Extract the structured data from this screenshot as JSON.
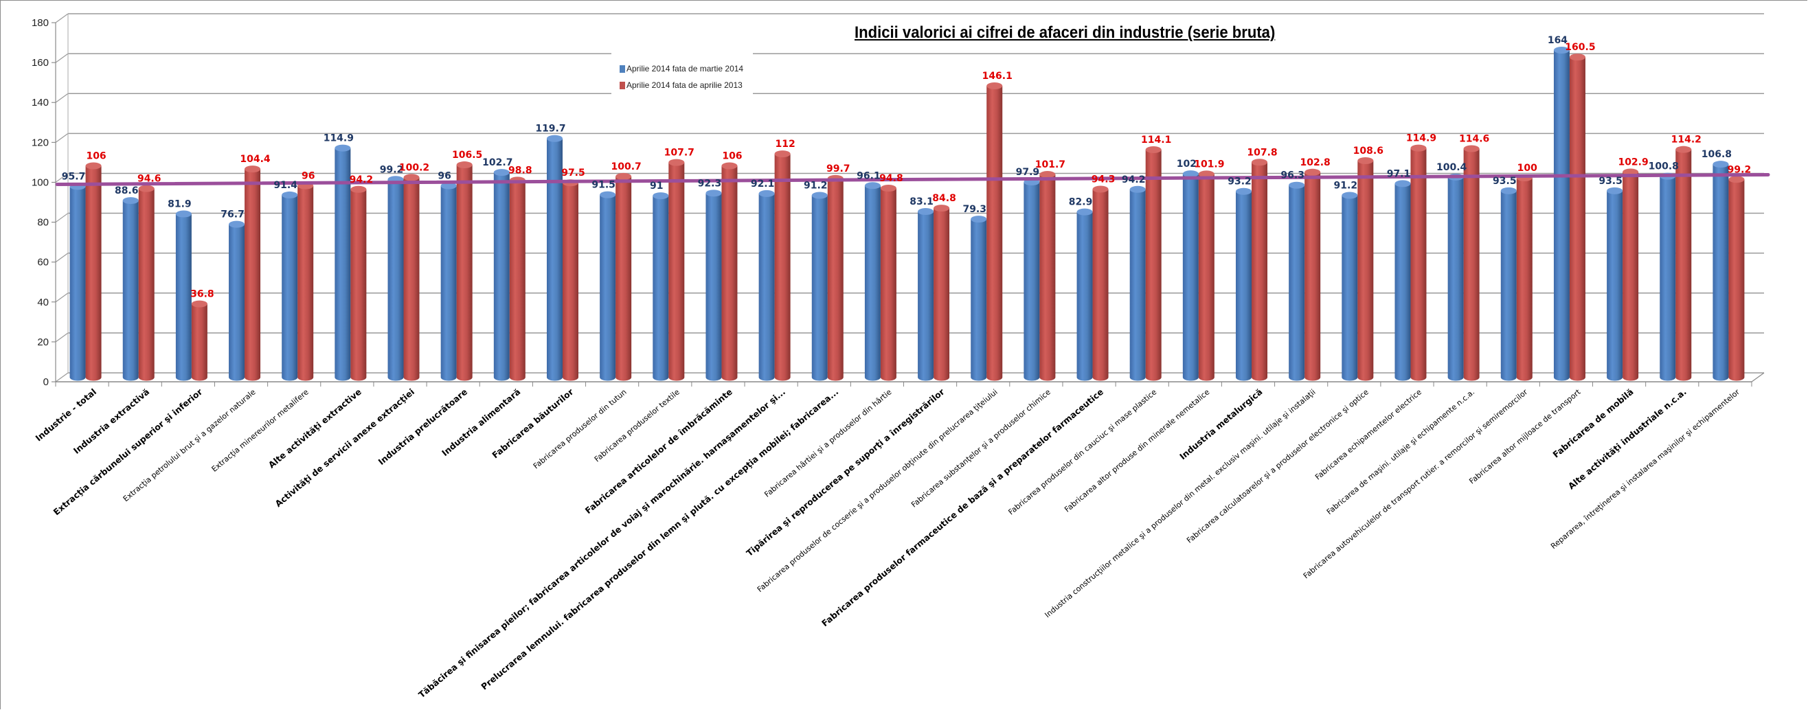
{
  "chart_data": {
    "type": "bar",
    "title": "Indicii valorici ai cifrei de afaceri din industrie  (serie bruta)",
    "xlabel": "",
    "ylabel": "",
    "ylim": [
      0,
      180
    ],
    "yticks": [
      0,
      20,
      40,
      60,
      80,
      100,
      120,
      140,
      160,
      180
    ],
    "grid": true,
    "legend_position": "top-center",
    "reference_line": {
      "value": 100,
      "color": "#9b4f9b"
    },
    "colors": {
      "series_1": "#4f81bd",
      "series_2": "#c0504d",
      "label_1": "#1f3864",
      "label_2": "#e00000"
    },
    "categories": [
      "Industrie - total",
      "Industria extractivă",
      "Extracţia cărbunelui superior şi inferior",
      "Extracţia petrolului brut şi a gazelor naturale",
      "Extracţia minereurilor metalifere",
      "Alte activităţi extractive",
      "Activităţi de servicii anexe extracţiei",
      "Industria prelucrătoare",
      "Industria alimentară",
      "Fabricarea băuturilor",
      "Fabricarea produselor din tutun",
      "Fabricarea produselor textile",
      "Fabricarea articolelor de îmbrăcăminte",
      "Tăbăcirea şi finisarea pieilor; fabricarea articolelor de voiaj şi marochinărie. harnaşamentelor şi...",
      "Prelucrarea lemnului. fabricarea produselor din lemn şi plută. cu excepţia mobilei; fabricarea...",
      "Fabricarea hârtiei şi a produselor din hârtie",
      "Tipărirea şi reproducerea pe suporţi a înregistrărilor",
      "Fabricarea produselor de cocserie şi a produselor obţinute din prelucrarea ţiţeiului",
      "Fabricarea substanţelor şi a produselor chimice",
      "Fabricarea produselor farmaceutice de bază şi a preparatelor farmaceutice",
      "Fabricarea produselor din cauciuc şi mase plastice",
      "Fabricarea altor produse din minerale nemetalice",
      "Industria metalurgică",
      "Industria construcţiilor metalice şi a produselor din metal. exclusiv maşini. utilaje şi instalaţii",
      "Fabricarea calculatoarelor şi a produselor electronice şi optice",
      "Fabricarea echipamentelor electrice",
      "Fabricarea de maşini. utilaje şi echipamente n.c.a.",
      "Fabricarea autovehiculelor de transport rutier. a remorcilor şi semiremorcilor",
      "Fabricarea altor mijloace de transport",
      "Fabricarea de mobilă",
      "Alte activităţi industriale n.c.a.",
      "Repararea, întreţinerea şi instalarea maşinilor şi echipamentelor"
    ],
    "bold_categories": [
      0,
      1,
      2,
      5,
      6,
      7,
      8,
      9,
      12,
      13,
      14,
      16,
      19,
      22,
      29,
      30
    ],
    "series": [
      {
        "name": "Aprilie 2014 fata de martie 2014",
        "values": [
          95.7,
          88.6,
          81.9,
          76.7,
          91.4,
          114.9,
          99.2,
          96,
          102.7,
          119.7,
          91.5,
          91,
          92.3,
          92.1,
          91.2,
          96.1,
          83.1,
          79.3,
          97.9,
          82.9,
          94.2,
          102,
          93.2,
          96.3,
          91.2,
          97.1,
          100.4,
          93.5,
          164,
          93.5,
          100.8,
          106.8
        ]
      },
      {
        "name": "Aprilie 2014 fata de aprilie 2013",
        "values": [
          106,
          94.6,
          36.8,
          104.4,
          96,
          94.2,
          100.2,
          106.5,
          98.8,
          97.5,
          100.7,
          107.7,
          106,
          112,
          99.7,
          94.8,
          84.8,
          146.1,
          101.7,
          94.3,
          114.1,
          101.9,
          107.8,
          102.8,
          108.6,
          114.9,
          114.6,
          100,
          160.5,
          102.9,
          114.2,
          99.2
        ]
      }
    ]
  }
}
